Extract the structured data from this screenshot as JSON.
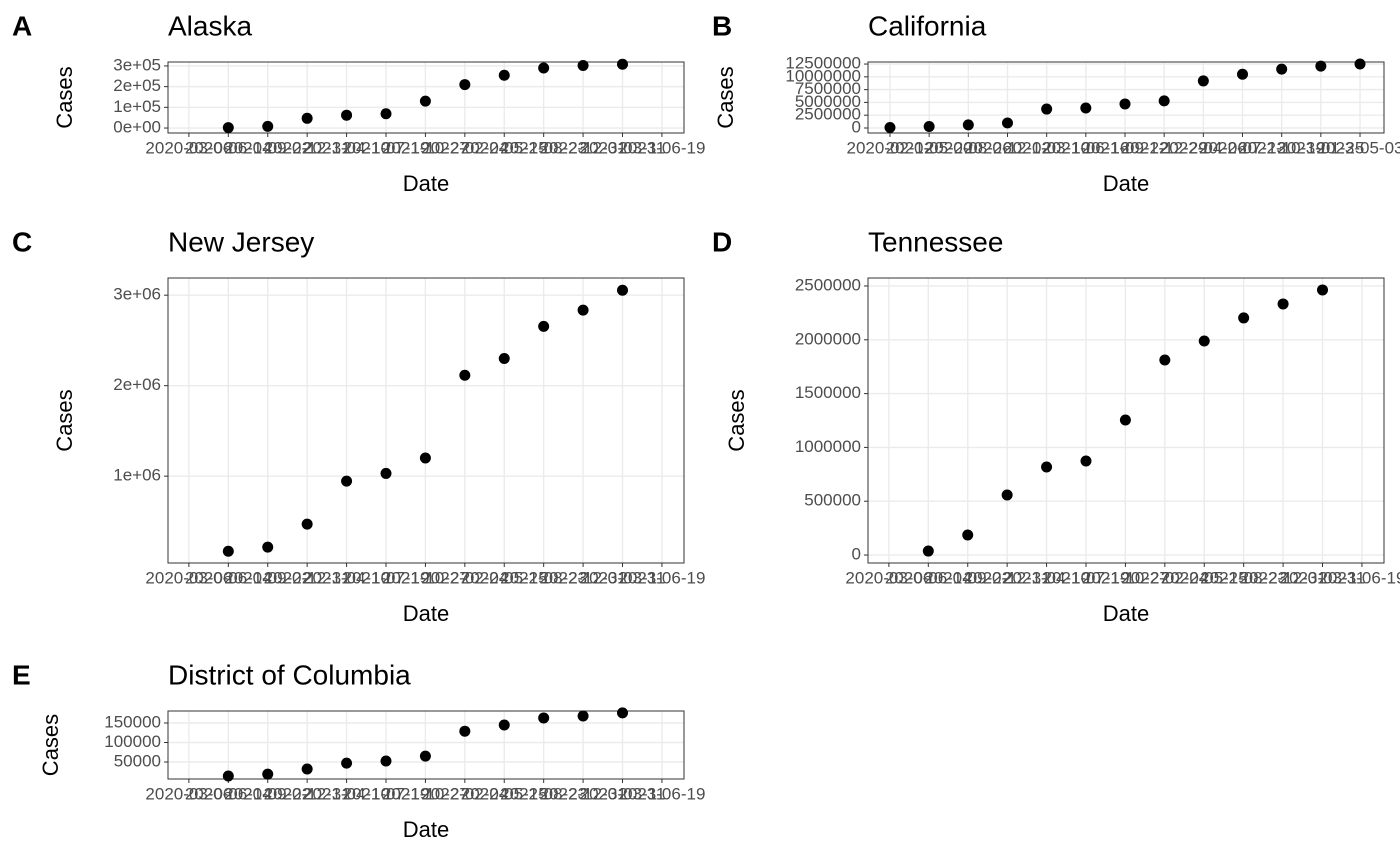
{
  "chart_data": [
    {
      "type": "scatter",
      "tag": "A",
      "title": "Alaska",
      "xlabel": "Date",
      "ylabel": "Cases",
      "color": "#000000",
      "grid": true,
      "x": [
        "2020-06-14",
        "2020-09-22",
        "2020-12-31",
        "2021-04-10",
        "2021-07-19",
        "2021-10-27",
        "2022-02-04",
        "2022-05-15",
        "2022-08-23",
        "2022-12-01",
        "2023-03-11"
      ],
      "values": [
        2000,
        8000,
        47000,
        62000,
        69000,
        130000,
        210000,
        255000,
        290000,
        302000,
        308000
      ],
      "xlim": [
        "2020-01-13",
        "2023-08-14"
      ],
      "xticks": [
        "2020-03-06",
        "2020-06-14",
        "2020-09-22",
        "2020-12-31",
        "2021-04-10",
        "2021-07-19",
        "2021-10-27",
        "2022-02-04",
        "2022-05-15",
        "2022-08-23",
        "2022-12-01",
        "2023-03-11",
        "2023-06-19"
      ],
      "ylim": [
        -24000,
        319000
      ],
      "yticks": [
        {
          "value": 0,
          "label": "0e+00"
        },
        {
          "value": 100000,
          "label": "1e+05"
        },
        {
          "value": 200000,
          "label": "2e+05"
        },
        {
          "value": 300000,
          "label": "3e+05"
        }
      ]
    },
    {
      "type": "scatter",
      "tag": "B",
      "title": "California",
      "xlabel": "Date",
      "ylabel": "Cases",
      "color": "#000000",
      "grid": true,
      "x": [
        "2020-02-12",
        "2020-05-20",
        "2020-08-26",
        "2020-12-02",
        "2021-03-10",
        "2021-06-16",
        "2021-09-22",
        "2021-12-29",
        "2022-04-06",
        "2022-07-13",
        "2022-10-19",
        "2023-01-25",
        "2023-05-03"
      ],
      "values": [
        100000,
        300000,
        600000,
        980000,
        3700000,
        3900000,
        4700000,
        5300000,
        9200000,
        10500000,
        11500000,
        12100000,
        12500000
      ],
      "xlim": [
        "2019-12-19",
        "2023-07-02"
      ],
      "xticks": [
        "2020-02-12",
        "2020-05-20",
        "2020-08-26",
        "2020-12-02",
        "2021-03-10",
        "2021-06-16",
        "2021-09-22",
        "2021-12-29",
        "2022-04-06",
        "2022-07-13",
        "2022-10-19",
        "2023-01-25",
        "2023-05-03"
      ],
      "ylim": [
        -980000,
        12900000
      ],
      "yticks": [
        0,
        2500000,
        5000000,
        7500000,
        10000000,
        12500000
      ]
    },
    {
      "type": "scatter",
      "tag": "C",
      "title": "New Jersey",
      "xlabel": "Date",
      "ylabel": "Cases",
      "color": "#000000",
      "grid": true,
      "x": [
        "2020-06-14",
        "2020-09-22",
        "2020-12-31",
        "2021-04-10",
        "2021-07-19",
        "2021-10-27",
        "2022-02-04",
        "2022-05-15",
        "2022-08-23",
        "2022-12-01",
        "2023-03-11"
      ],
      "values": [
        170000,
        215000,
        470000,
        945000,
        1030000,
        1200000,
        2115000,
        2300000,
        2655000,
        2835000,
        3055000
      ],
      "xlim": [
        "2020-01-13",
        "2023-08-14"
      ],
      "xticks": [
        "2020-03-06",
        "2020-06-14",
        "2020-09-22",
        "2020-12-31",
        "2021-04-10",
        "2021-07-19",
        "2021-10-27",
        "2022-02-04",
        "2022-05-15",
        "2022-08-23",
        "2022-12-01",
        "2023-03-11",
        "2023-06-19"
      ],
      "ylim": [
        40000,
        3190000
      ],
      "yticks": [
        {
          "value": 1000000,
          "label": "1e+06"
        },
        {
          "value": 2000000,
          "label": "2e+06"
        },
        {
          "value": 3000000,
          "label": "3e+06"
        }
      ]
    },
    {
      "type": "scatter",
      "tag": "D",
      "title": "Tennessee",
      "xlabel": "Date",
      "ylabel": "Cases",
      "color": "#000000",
      "grid": true,
      "x": [
        "2020-06-14",
        "2020-09-22",
        "2020-12-31",
        "2021-04-10",
        "2021-07-19",
        "2021-10-27",
        "2022-02-04",
        "2022-05-15",
        "2022-08-23",
        "2022-12-01",
        "2023-03-11"
      ],
      "values": [
        37000,
        186000,
        558000,
        818000,
        874000,
        1255000,
        1812000,
        1989000,
        2203000,
        2333000,
        2463000
      ],
      "xlim": [
        "2020-01-13",
        "2023-08-14"
      ],
      "xticks": [
        "2020-03-06",
        "2020-06-14",
        "2020-09-22",
        "2020-12-31",
        "2021-04-10",
        "2021-07-19",
        "2021-10-27",
        "2022-02-04",
        "2022-05-15",
        "2022-08-23",
        "2022-12-01",
        "2023-03-11",
        "2023-06-19"
      ],
      "ylim": [
        -74000,
        2574000
      ],
      "yticks": [
        0,
        500000,
        1000000,
        1500000,
        2000000,
        2500000
      ]
    },
    {
      "type": "scatter",
      "tag": "E",
      "title": "District of Columbia",
      "xlabel": "Date",
      "ylabel": "Cases",
      "color": "#000000",
      "grid": true,
      "x": [
        "2020-06-14",
        "2020-09-22",
        "2020-12-31",
        "2021-04-10",
        "2021-07-19",
        "2021-10-27",
        "2022-02-04",
        "2022-05-15",
        "2022-08-23",
        "2022-12-01",
        "2023-03-11"
      ],
      "values": [
        14000,
        19000,
        32000,
        47000,
        52500,
        65000,
        129000,
        145000,
        163000,
        168000,
        176000
      ],
      "xlim": [
        "2020-01-13",
        "2023-08-14"
      ],
      "xticks": [
        "2020-03-06",
        "2020-06-14",
        "2020-09-22",
        "2020-12-31",
        "2021-04-10",
        "2021-07-19",
        "2021-10-27",
        "2022-02-04",
        "2022-05-15",
        "2022-08-23",
        "2022-12-01",
        "2023-03-11",
        "2023-06-19"
      ],
      "ylim": [
        6400,
        180800
      ],
      "yticks": [
        50000,
        100000,
        150000
      ]
    }
  ]
}
